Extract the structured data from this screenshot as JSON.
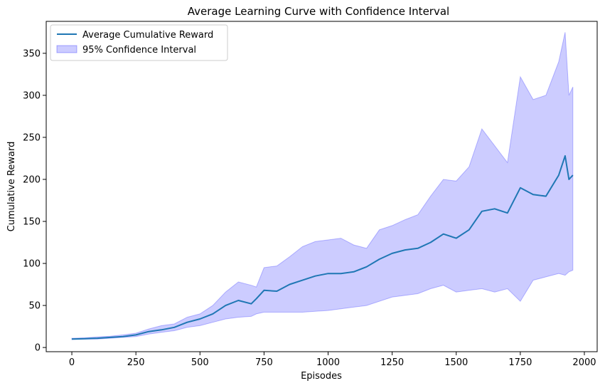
{
  "chart_data": {
    "type": "line",
    "title": "Average Learning Curve with Confidence Interval",
    "xlabel": "Episodes",
    "ylabel": "Cumulative Reward",
    "xlim": [
      -100,
      2050
    ],
    "ylim": [
      -5,
      388
    ],
    "xticks": [
      0,
      250,
      500,
      750,
      1000,
      1250,
      1500,
      1750,
      2000
    ],
    "yticks": [
      0,
      50,
      100,
      150,
      200,
      250,
      300,
      350
    ],
    "grid": false,
    "legend_position": "top-left",
    "series": [
      {
        "name": "Average Cumulative Reward",
        "kind": "line",
        "color": "#1f77b4",
        "x": [
          0,
          50,
          100,
          150,
          200,
          250,
          300,
          350,
          400,
          450,
          500,
          550,
          600,
          650,
          700,
          720,
          750,
          800,
          850,
          900,
          950,
          1000,
          1050,
          1100,
          1150,
          1200,
          1250,
          1300,
          1350,
          1400,
          1450,
          1500,
          1550,
          1600,
          1650,
          1700,
          1750,
          1800,
          1850,
          1900,
          1925,
          1940,
          1955
        ],
        "y": [
          10,
          10.5,
          11,
          12,
          13,
          15,
          19,
          21,
          24,
          30,
          34,
          40,
          50,
          56,
          52,
          58,
          68,
          67,
          75,
          80,
          85,
          88,
          88,
          90,
          96,
          105,
          112,
          116,
          118,
          125,
          135,
          130,
          140,
          162,
          165,
          160,
          190,
          182,
          180,
          205,
          228,
          200,
          205
        ]
      },
      {
        "name": "95% Confidence Interval",
        "kind": "band",
        "color": "#0000ff",
        "x": [
          0,
          50,
          100,
          150,
          200,
          250,
          300,
          350,
          400,
          450,
          500,
          550,
          600,
          650,
          700,
          720,
          750,
          800,
          850,
          900,
          950,
          1000,
          1050,
          1100,
          1150,
          1200,
          1250,
          1300,
          1350,
          1400,
          1450,
          1500,
          1550,
          1600,
          1650,
          1700,
          1750,
          1800,
          1850,
          1900,
          1925,
          1940,
          1955
        ],
        "lower": [
          9.5,
          9.8,
          10,
          11,
          12,
          13,
          16,
          18,
          20,
          24,
          26,
          30,
          34,
          36,
          37,
          40,
          42,
          42,
          42,
          42,
          43,
          44,
          46,
          48,
          50,
          55,
          60,
          62,
          64,
          70,
          74,
          66,
          68,
          70,
          66,
          70,
          55,
          80,
          84,
          88,
          86,
          90,
          92
        ],
        "upper": [
          11,
          11.5,
          12.5,
          13.5,
          15,
          17,
          22,
          26,
          28,
          36,
          40,
          50,
          66,
          78,
          74,
          72,
          95,
          97,
          108,
          120,
          126,
          128,
          130,
          122,
          118,
          140,
          145,
          152,
          158,
          180,
          200,
          198,
          215,
          260,
          240,
          220,
          322,
          295,
          300,
          340,
          375,
          300,
          310
        ]
      }
    ]
  }
}
